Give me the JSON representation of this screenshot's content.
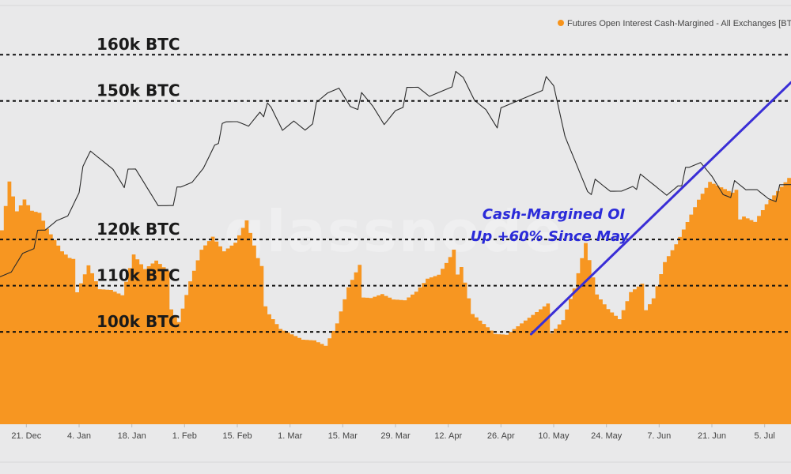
{
  "legend": {
    "label": "Futures Open Interest Cash-Margined - All Exchanges [BTC]",
    "color": "#F7931A"
  },
  "watermark": "glassnode",
  "annotation": {
    "line1": "Cash-Margined OI",
    "line2": "Up +60% Since May",
    "color": "#2b2bd9"
  },
  "chart_data": {
    "type": "area",
    "title": "",
    "xlabel": "",
    "ylabel": "",
    "x_tick_labels": [
      "21. Dec",
      "4. Jan",
      "18. Jan",
      "1. Feb",
      "15. Feb",
      "1. Mar",
      "15. Mar",
      "29. Mar",
      "12. Apr",
      "26. Apr",
      "10. May",
      "24. May",
      "7. Jun",
      "21. Jun",
      "5. Jul"
    ],
    "reference_levels": [
      {
        "label": "160k BTC",
        "value": 160000
      },
      {
        "label": "150k BTC",
        "value": 150000
      },
      {
        "label": "120k BTC",
        "value": 120000
      },
      {
        "label": "110k BTC",
        "value": 110000
      },
      {
        "label": "100k BTC",
        "value": 100000
      }
    ],
    "ylim": [
      80000,
      165000
    ],
    "x_range": [
      "2020-12-14",
      "2021-07-12"
    ],
    "series": [
      {
        "name": "Futures Open Interest Cash-Margined - All Exchanges [BTC]",
        "kind": "area",
        "color": "#F7931A",
        "x": [
          "2020-12-14",
          "2020-12-16",
          "2020-12-18",
          "2020-12-20",
          "2020-12-22",
          "2020-12-24",
          "2020-12-26",
          "2020-12-28",
          "2020-12-30",
          "2021-01-01",
          "2021-01-03",
          "2021-01-06",
          "2021-01-09",
          "2021-01-12",
          "2021-01-15",
          "2021-01-18",
          "2021-01-21",
          "2021-01-24",
          "2021-01-27",
          "2021-01-30",
          "2021-02-02",
          "2021-02-05",
          "2021-02-08",
          "2021-02-11",
          "2021-02-14",
          "2021-02-17",
          "2021-02-20",
          "2021-02-23",
          "2021-02-26",
          "2021-03-01",
          "2021-03-04",
          "2021-03-07",
          "2021-03-10",
          "2021-03-13",
          "2021-03-16",
          "2021-03-19",
          "2021-03-22",
          "2021-03-25",
          "2021-03-28",
          "2021-03-31",
          "2021-04-03",
          "2021-04-06",
          "2021-04-09",
          "2021-04-12",
          "2021-04-15",
          "2021-04-18",
          "2021-04-21",
          "2021-04-24",
          "2021-04-27",
          "2021-04-30",
          "2021-05-03",
          "2021-05-06",
          "2021-05-09",
          "2021-05-12",
          "2021-05-15",
          "2021-05-18",
          "2021-05-21",
          "2021-05-24",
          "2021-05-27",
          "2021-05-30",
          "2021-06-02",
          "2021-06-05",
          "2021-06-08",
          "2021-06-11",
          "2021-06-14",
          "2021-06-17",
          "2021-06-20",
          "2021-06-23",
          "2021-06-26",
          "2021-06-29",
          "2021-07-02",
          "2021-07-05",
          "2021-07-08",
          "2021-07-11"
        ],
        "values": [
          124000,
          134000,
          127000,
          129000,
          126000,
          125000,
          121000,
          118000,
          115000,
          113000,
          112000,
          117000,
          111000,
          110000,
          108000,
          116000,
          112000,
          113000,
          110000,
          105000,
          113000,
          119000,
          121000,
          117000,
          118000,
          122000,
          113000,
          107000,
          103000,
          101000,
          99000,
          98000,
          96000,
          100000,
          107000,
          111000,
          110000,
          110000,
          108000,
          107000,
          108000,
          110000,
          110000,
          113000,
          117000,
          106000,
          103000,
          100000,
          99000,
          100000,
          101000,
          102000,
          103000,
          105000,
          111000,
          120000,
          108000,
          104000,
          101000,
          106000,
          107000,
          110000,
          117000,
          120000,
          124000,
          128000,
          131000,
          129000,
          127000,
          128000,
          126000,
          129000,
          131000,
          133000
        ]
      }
    ],
    "price_line": {
      "x": [
        "2020-12-14",
        "2020-12-17",
        "2020-12-20",
        "2020-12-23",
        "2020-12-26",
        "2020-12-29",
        "2021-01-01",
        "2021-01-04",
        "2021-01-07",
        "2021-01-10",
        "2021-01-13",
        "2021-01-16",
        "2021-01-19",
        "2021-01-22",
        "2021-01-25",
        "2021-01-28",
        "2021-01-31",
        "2021-02-03",
        "2021-02-06",
        "2021-02-09",
        "2021-02-12",
        "2021-02-15",
        "2021-02-18",
        "2021-02-21",
        "2021-02-24",
        "2021-02-27",
        "2021-03-02",
        "2021-03-05",
        "2021-03-08",
        "2021-03-11",
        "2021-03-14",
        "2021-03-17",
        "2021-03-20",
        "2021-03-23",
        "2021-03-26",
        "2021-03-29",
        "2021-04-01",
        "2021-04-04",
        "2021-04-07",
        "2021-04-10",
        "2021-04-13",
        "2021-04-16",
        "2021-04-19",
        "2021-04-22",
        "2021-04-25",
        "2021-04-28",
        "2021-05-01",
        "2021-05-04",
        "2021-05-07",
        "2021-05-10",
        "2021-05-13",
        "2021-05-16",
        "2021-05-19",
        "2021-05-22",
        "2021-05-25",
        "2021-05-28",
        "2021-05-31",
        "2021-06-03",
        "2021-06-06",
        "2021-06-09",
        "2021-06-12",
        "2021-06-15",
        "2021-06-18",
        "2021-06-21",
        "2021-06-24",
        "2021-06-27",
        "2021-06-30",
        "2021-07-03",
        "2021-07-06",
        "2021-07-09",
        "2021-07-12"
      ],
      "values": [
        111000,
        113000,
        118000,
        120000,
        121000,
        124000,
        126000,
        132000,
        138000,
        137000,
        136000,
        133000,
        134000,
        131000,
        128000,
        129000,
        130000,
        132000,
        136000,
        142000,
        144000,
        145000,
        145000,
        149000,
        147000,
        143000,
        146000,
        145000,
        148000,
        151000,
        153000,
        150000,
        150000,
        148000,
        145000,
        149000,
        151000,
        152000,
        151000,
        153000,
        155000,
        154000,
        150000,
        149000,
        146000,
        148000,
        150000,
        152000,
        154000,
        152000,
        142000,
        137000,
        132000,
        131000,
        130000,
        131000,
        133000,
        132000,
        131000,
        130000,
        133000,
        134000,
        136000,
        134000,
        131000,
        131000,
        130000,
        131000,
        130000,
        130000,
        131000
      ],
      "color": "#2a2a2a"
    },
    "trend_line": {
      "x": [
        "2021-05-04",
        "2021-07-12"
      ],
      "y": [
        99500,
        154000
      ],
      "color": "#3a2ed6"
    },
    "grid": false,
    "legend_position": "top-right"
  }
}
